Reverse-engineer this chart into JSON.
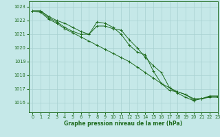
{
  "title": "Graphe pression niveau de la mer (hPa)",
  "background_color": "#c5e8e8",
  "grid_color": "#a8d0d0",
  "line_color": "#1e6b1e",
  "xlim": [
    -0.5,
    23
  ],
  "ylim": [
    1015.3,
    1023.4
  ],
  "yticks": [
    1016,
    1017,
    1018,
    1019,
    1020,
    1021,
    1022,
    1023
  ],
  "xticks": [
    0,
    1,
    2,
    3,
    4,
    5,
    6,
    7,
    8,
    9,
    10,
    11,
    12,
    13,
    14,
    15,
    16,
    17,
    18,
    19,
    20,
    21,
    22,
    23
  ],
  "series": [
    {
      "x": [
        0,
        1,
        2,
        3,
        4,
        5,
        6,
        7,
        8,
        9,
        10,
        11,
        12,
        13,
        14,
        15,
        16,
        17,
        18,
        19,
        20,
        21,
        22,
        23
      ],
      "y": [
        1022.7,
        1022.7,
        1022.3,
        1022.0,
        1021.8,
        1021.5,
        1021.2,
        1021.0,
        1021.9,
        1021.8,
        1021.5,
        1021.0,
        1020.2,
        1019.7,
        1019.5,
        1018.3,
        1017.4,
        1016.9,
        1016.8,
        1016.6,
        1016.2,
        1016.3,
        1016.5,
        1016.5
      ]
    },
    {
      "x": [
        0,
        1,
        2,
        3,
        4,
        5,
        6,
        7,
        8,
        9,
        10,
        11,
        12,
        13,
        14,
        15,
        16,
        17,
        18,
        19,
        20,
        21,
        22,
        23
      ],
      "y": [
        1022.7,
        1022.7,
        1022.2,
        1021.9,
        1021.5,
        1021.2,
        1021.0,
        1021.0,
        1021.6,
        1021.6,
        1021.4,
        1021.3,
        1020.6,
        1020.0,
        1019.3,
        1018.7,
        1018.2,
        1017.1,
        1016.7,
        1016.4,
        1016.15,
        1016.3,
        1016.45,
        1016.45
      ]
    },
    {
      "x": [
        0,
        1,
        2,
        3,
        4,
        5,
        6,
        7,
        8,
        9,
        10,
        11,
        12,
        13,
        14,
        15,
        16,
        17,
        18,
        19,
        20,
        21,
        22,
        23
      ],
      "y": [
        1022.7,
        1022.6,
        1022.1,
        1021.8,
        1021.4,
        1021.1,
        1020.8,
        1020.5,
        1020.2,
        1019.9,
        1019.6,
        1019.3,
        1019.0,
        1018.6,
        1018.2,
        1017.8,
        1017.4,
        1017.1,
        1016.8,
        1016.6,
        1016.3,
        1016.3,
        1016.4,
        1016.4
      ]
    }
  ]
}
